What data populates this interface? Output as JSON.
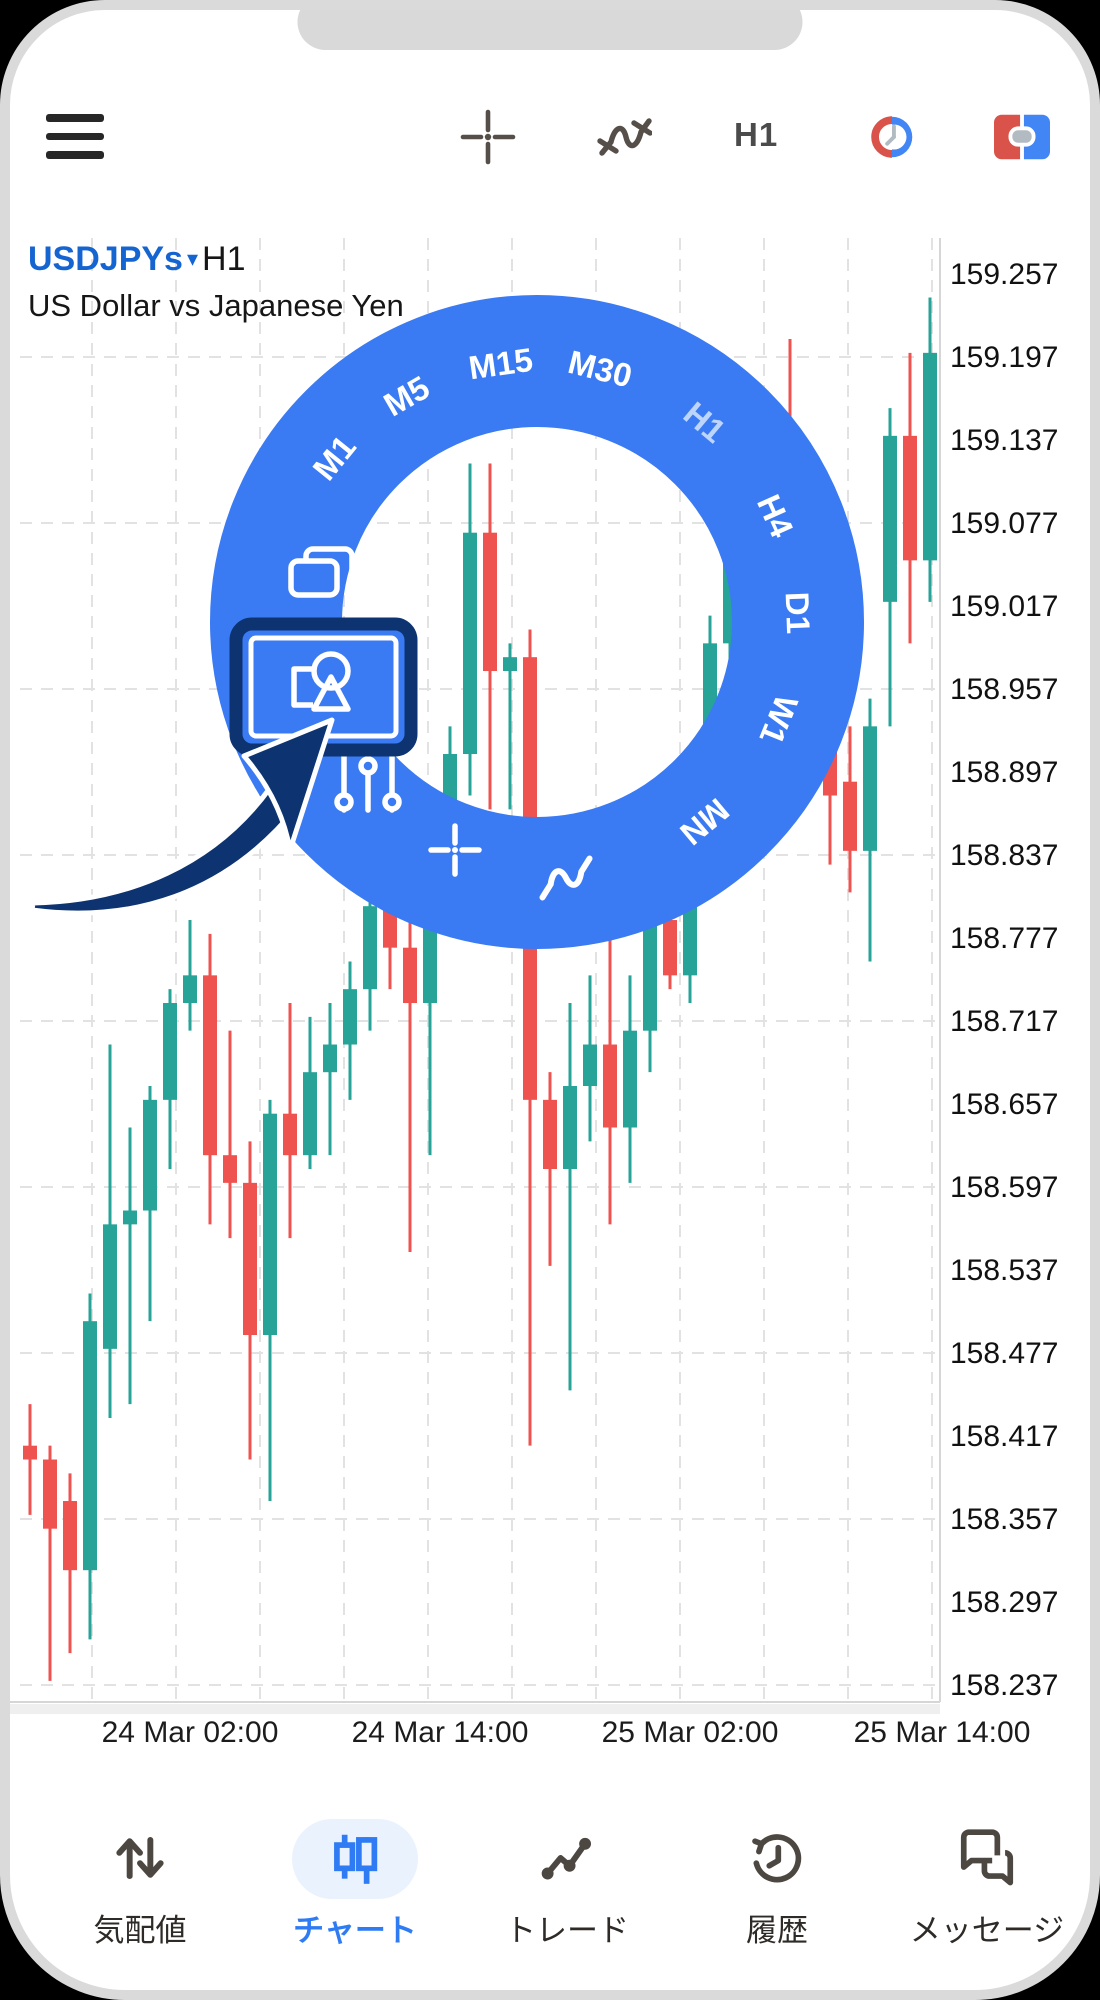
{
  "toolbar": {
    "menu_icon": "hamburger-menu",
    "crosshair_icon": "crosshair",
    "line_chart_icon": "line-squiggle",
    "timeframe_label": "H1",
    "clock_icon_colors": {
      "red": "#d9534a",
      "blue": "#4285f4",
      "hands": "#b2bac2"
    },
    "split_icon_colors": {
      "red": "#d9534a",
      "blue": "#4285f4",
      "pill": "#b2bac2"
    }
  },
  "chart": {
    "symbol": "USDJPYs",
    "dropdown_caret": "▾",
    "timeframe": "H1",
    "subtitle": "US Dollar vs Japanese Yen",
    "price_axis_labels": [
      "159.257",
      "159.197",
      "159.137",
      "159.077",
      "159.017",
      "158.957",
      "158.897",
      "158.837",
      "158.777",
      "158.717",
      "158.657",
      "158.597",
      "158.537",
      "158.477",
      "158.417",
      "158.357",
      "158.297",
      "158.237"
    ],
    "time_axis_labels": [
      "24 Mar 02:00",
      "24 Mar 14:00",
      "25 Mar 02:00",
      "25 Mar 14:00"
    ],
    "colors": {
      "bull": "#27a398",
      "bear": "#ef5350",
      "grid": "#e2e2e2",
      "axis_text": "#111111"
    }
  },
  "chart_data": {
    "type": "candlestick",
    "title": "USDJPYs H1 — US Dollar vs Japanese Yen",
    "ylim": [
      158.237,
      159.257
    ],
    "x_tick_labels": [
      "24 Mar 02:00",
      "24 Mar 14:00",
      "25 Mar 02:00",
      "25 Mar 14:00"
    ],
    "candles": [
      {
        "t": "23 Mar 18:00",
        "o": 158.41,
        "h": 158.44,
        "l": 158.36,
        "c": 158.4
      },
      {
        "t": "23 Mar 19:00",
        "o": 158.4,
        "h": 158.41,
        "l": 158.24,
        "c": 158.35
      },
      {
        "t": "23 Mar 20:00",
        "o": 158.37,
        "h": 158.39,
        "l": 158.26,
        "c": 158.32
      },
      {
        "t": "23 Mar 21:00",
        "o": 158.32,
        "h": 158.52,
        "l": 158.27,
        "c": 158.5
      },
      {
        "t": "23 Mar 22:00",
        "o": 158.48,
        "h": 158.7,
        "l": 158.43,
        "c": 158.57
      },
      {
        "t": "23 Mar 23:00",
        "o": 158.57,
        "h": 158.64,
        "l": 158.44,
        "c": 158.58
      },
      {
        "t": "24 Mar 00:00",
        "o": 158.58,
        "h": 158.67,
        "l": 158.5,
        "c": 158.66
      },
      {
        "t": "24 Mar 01:00",
        "o": 158.66,
        "h": 158.74,
        "l": 158.61,
        "c": 158.73
      },
      {
        "t": "24 Mar 02:00",
        "o": 158.73,
        "h": 158.79,
        "l": 158.71,
        "c": 158.75
      },
      {
        "t": "24 Mar 03:00",
        "o": 158.75,
        "h": 158.78,
        "l": 158.57,
        "c": 158.62
      },
      {
        "t": "24 Mar 04:00",
        "o": 158.62,
        "h": 158.71,
        "l": 158.56,
        "c": 158.6
      },
      {
        "t": "24 Mar 05:00",
        "o": 158.6,
        "h": 158.63,
        "l": 158.4,
        "c": 158.49
      },
      {
        "t": "24 Mar 06:00",
        "o": 158.49,
        "h": 158.66,
        "l": 158.37,
        "c": 158.65
      },
      {
        "t": "24 Mar 07:00",
        "o": 158.65,
        "h": 158.73,
        "l": 158.56,
        "c": 158.62
      },
      {
        "t": "24 Mar 08:00",
        "o": 158.62,
        "h": 158.72,
        "l": 158.61,
        "c": 158.68
      },
      {
        "t": "24 Mar 09:00",
        "o": 158.68,
        "h": 158.73,
        "l": 158.62,
        "c": 158.7
      },
      {
        "t": "24 Mar 10:00",
        "o": 158.7,
        "h": 158.76,
        "l": 158.66,
        "c": 158.74
      },
      {
        "t": "24 Mar 11:00",
        "o": 158.74,
        "h": 158.82,
        "l": 158.71,
        "c": 158.8
      },
      {
        "t": "24 Mar 12:00",
        "o": 158.8,
        "h": 158.86,
        "l": 158.74,
        "c": 158.77
      },
      {
        "t": "24 Mar 13:00",
        "o": 158.77,
        "h": 158.81,
        "l": 158.55,
        "c": 158.73
      },
      {
        "t": "24 Mar 14:00",
        "o": 158.73,
        "h": 158.85,
        "l": 158.62,
        "c": 158.84
      },
      {
        "t": "24 Mar 15:00",
        "o": 158.84,
        "h": 158.93,
        "l": 158.8,
        "c": 158.91
      },
      {
        "t": "24 Mar 16:00",
        "o": 158.91,
        "h": 159.12,
        "l": 158.88,
        "c": 159.07
      },
      {
        "t": "24 Mar 17:00",
        "o": 159.07,
        "h": 159.12,
        "l": 158.87,
        "c": 158.97
      },
      {
        "t": "24 Mar 18:00",
        "o": 158.97,
        "h": 158.99,
        "l": 158.87,
        "c": 158.98
      },
      {
        "t": "24 Mar 19:00",
        "o": 158.98,
        "h": 159.0,
        "l": 158.41,
        "c": 158.66
      },
      {
        "t": "24 Mar 20:00",
        "o": 158.66,
        "h": 158.68,
        "l": 158.54,
        "c": 158.61
      },
      {
        "t": "24 Mar 21:00",
        "o": 158.61,
        "h": 158.73,
        "l": 158.45,
        "c": 158.67
      },
      {
        "t": "24 Mar 22:00",
        "o": 158.67,
        "h": 158.75,
        "l": 158.63,
        "c": 158.7
      },
      {
        "t": "24 Mar 23:00",
        "o": 158.7,
        "h": 158.78,
        "l": 158.57,
        "c": 158.64
      },
      {
        "t": "25 Mar 00:00",
        "o": 158.64,
        "h": 158.75,
        "l": 158.6,
        "c": 158.71
      },
      {
        "t": "25 Mar 01:00",
        "o": 158.71,
        "h": 158.8,
        "l": 158.68,
        "c": 158.79
      },
      {
        "t": "25 Mar 02:00",
        "o": 158.79,
        "h": 158.81,
        "l": 158.74,
        "c": 158.75
      },
      {
        "t": "25 Mar 03:00",
        "o": 158.75,
        "h": 158.88,
        "l": 158.73,
        "c": 158.87
      },
      {
        "t": "25 Mar 04:00",
        "o": 158.87,
        "h": 159.01,
        "l": 158.84,
        "c": 158.99
      },
      {
        "t": "25 Mar 05:00",
        "o": 158.99,
        "h": 159.08,
        "l": 158.96,
        "c": 159.06
      },
      {
        "t": "25 Mar 06:00",
        "o": 159.06,
        "h": 159.08,
        "l": 159.01,
        "c": 159.07
      },
      {
        "t": "25 Mar 07:00",
        "o": 159.07,
        "h": 159.1,
        "l": 158.96,
        "c": 159.0
      },
      {
        "t": "25 Mar 08:00",
        "o": 159.0,
        "h": 159.21,
        "l": 158.88,
        "c": 158.91
      },
      {
        "t": "25 Mar 09:00",
        "o": 158.91,
        "h": 158.98,
        "l": 158.88,
        "c": 158.97
      },
      {
        "t": "25 Mar 10:00",
        "o": 158.97,
        "h": 158.99,
        "l": 158.83,
        "c": 158.88
      },
      {
        "t": "25 Mar 11:00",
        "o": 158.89,
        "h": 158.93,
        "l": 158.81,
        "c": 158.84
      },
      {
        "t": "25 Mar 12:00",
        "o": 158.84,
        "h": 158.95,
        "l": 158.76,
        "c": 158.93
      },
      {
        "t": "25 Mar 13:00",
        "o": 159.02,
        "h": 159.16,
        "l": 158.93,
        "c": 159.14
      },
      {
        "t": "25 Mar 14:00",
        "o": 159.14,
        "h": 159.2,
        "l": 158.99,
        "c": 159.05
      },
      {
        "t": "25 Mar 15:00",
        "o": 159.05,
        "h": 159.24,
        "l": 159.02,
        "c": 159.2
      }
    ]
  },
  "radial_menu": {
    "ring_color": "#3a7af3",
    "selected_timeframe": "H1",
    "selected_label_color": "#bdd5fb",
    "timeframes": [
      {
        "label": "M1",
        "angle": -51
      },
      {
        "label": "M5",
        "angle": -30
      },
      {
        "label": "M15",
        "angle": -8
      },
      {
        "label": "M30",
        "angle": 14
      },
      {
        "label": "H1",
        "angle": 40
      },
      {
        "label": "H4",
        "angle": 66
      },
      {
        "label": "D1",
        "angle": 88
      },
      {
        "label": "W1",
        "angle": 112
      },
      {
        "label": "MN",
        "angle": 140
      }
    ],
    "icons": [
      "windows-icon",
      "objects-icon",
      "indicators-icon",
      "crosshair-icon",
      "line-chart-icon"
    ],
    "highlighted_tool": "objects-icon",
    "highlight_border_color": "#0d3471"
  },
  "annotation_arrow": {
    "color": "#0d3471",
    "points_to": "objects-icon"
  },
  "bottom_nav": {
    "active_color": "#2e7bf3",
    "inactive_color": "#2e2a27",
    "items": [
      {
        "label": "気配値",
        "icon": "quotes-updown-icon",
        "active": false
      },
      {
        "label": "チャート",
        "icon": "chart-candles-icon",
        "active": true
      },
      {
        "label": "トレード",
        "icon": "trade-zigzag-icon",
        "active": false
      },
      {
        "label": "履歴",
        "icon": "history-clock-icon",
        "active": false
      },
      {
        "label": "メッセージ",
        "icon": "messages-bubbles-icon",
        "active": false
      }
    ]
  }
}
